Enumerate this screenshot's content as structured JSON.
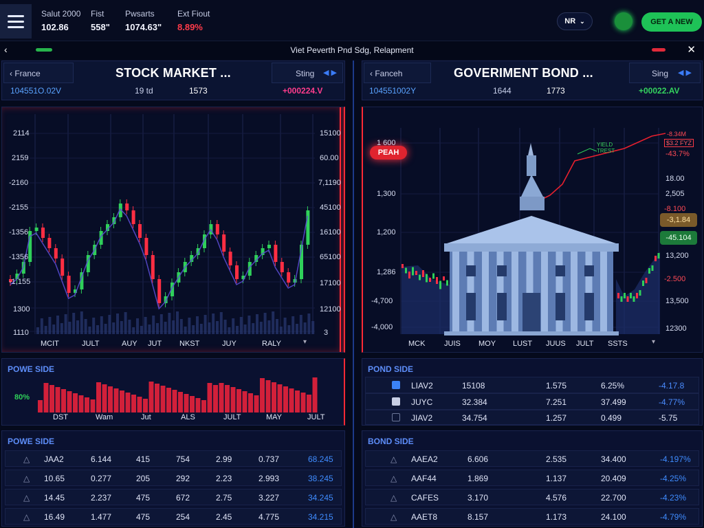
{
  "topbar": {
    "stats": [
      {
        "label": "Salut 2000",
        "value": "102.86"
      },
      {
        "label": "Fist",
        "value": "558\""
      },
      {
        "label": "Pwsarts",
        "value": "1074.63\""
      },
      {
        "label": "Ext Fiout",
        "value": "8.89%"
      }
    ],
    "lang": "NR",
    "cta": "GET A NEW"
  },
  "subbar": {
    "title": "Viet Peverth Pnd Sdg, Relapment"
  },
  "left": {
    "region": "France",
    "title": "STOCK MARKET ...",
    "sort": "Sting",
    "code": "104551O.02V",
    "mid1": "19 td",
    "mid2": "1573",
    "change": "+000224.V",
    "y_left": [
      "2114",
      "2159",
      "-2160",
      "-2155",
      "-1356",
      "-1356",
      "-1,155",
      "1300",
      "1110"
    ],
    "y_right": [
      "15100",
      "60.00",
      "7,1190",
      "45100",
      "16100",
      "65100",
      "17100",
      "12100",
      "3"
    ],
    "x_labels": [
      "MCIT",
      "JULT",
      "AUY",
      "JUT",
      "NKST",
      "JUY",
      "RALY"
    ],
    "power_title": "POWE SIDE",
    "power_pct": "80%",
    "power_x": [
      "DST",
      "Wam",
      "Jut",
      "ALS",
      "JULT",
      "MAY",
      "JULT"
    ],
    "table_title": "POWE SIDE",
    "rows": [
      [
        "JAA2",
        "6.144",
        "415",
        "754",
        "2.99",
        "0.737",
        "68.245"
      ],
      [
        "10.65",
        "0.277",
        "205",
        "292",
        "2.23",
        "2.993",
        "38.245"
      ],
      [
        "14.45",
        "2.237",
        "475",
        "672",
        "2.75",
        "3.227",
        "34.245"
      ],
      [
        "16.49",
        "1.477",
        "475",
        "254",
        "2.45",
        "4.775",
        "34.215"
      ]
    ]
  },
  "right": {
    "region": "Fanceh",
    "title": "GOVERIMENT BOND ...",
    "sort": "Sing",
    "code": "104551002Y",
    "mid1": "1644",
    "mid2": "1773",
    "change": "+00022.AV",
    "badge_peak": "PEAH",
    "yield_label": "YIELD TREST",
    "y_left": [
      "1 600",
      "1,300",
      "1,200",
      "1,286",
      "-4,700",
      "-4,000"
    ],
    "y_right": [
      "-8.34M",
      "$3.2 FYZ",
      "-43.7%",
      "18.00",
      "2,505",
      "-8.100",
      "-3,1.84",
      "-45.104",
      "13,200",
      "-2.500",
      "13,500",
      "12300"
    ],
    "x_labels": [
      "MCK",
      "JUIS",
      "MOY",
      "LUST",
      "JUUS",
      "JULT",
      "SSTS"
    ],
    "bond_title": "POND SIDE",
    "bond_rows": [
      [
        "LIAV2",
        "15108",
        "1.575",
        "6.25%",
        "-4.17.8"
      ],
      [
        "JUYC",
        "32.384",
        "7.251",
        "37.499",
        "-4.77%"
      ],
      [
        "JIAV2",
        "34.754",
        "1.257",
        "0.499",
        "-5.75"
      ]
    ],
    "table_title": "BOND SIDE",
    "rows": [
      [
        "AAEA2",
        "6.606",
        "2.535",
        "34.400",
        "-4.197%"
      ],
      [
        "AAF44",
        "1.869",
        "1.137",
        "20.409",
        "-4.25%"
      ],
      [
        "CAFES",
        "3.170",
        "4.576",
        "22.700",
        "-4.23%"
      ],
      [
        "AAET8",
        "8.157",
        "1.173",
        "24.100",
        "-4.79%"
      ]
    ]
  },
  "colors": {
    "up": "#2fd05a",
    "down": "#ff2e43",
    "accent": "#2f6df6"
  }
}
